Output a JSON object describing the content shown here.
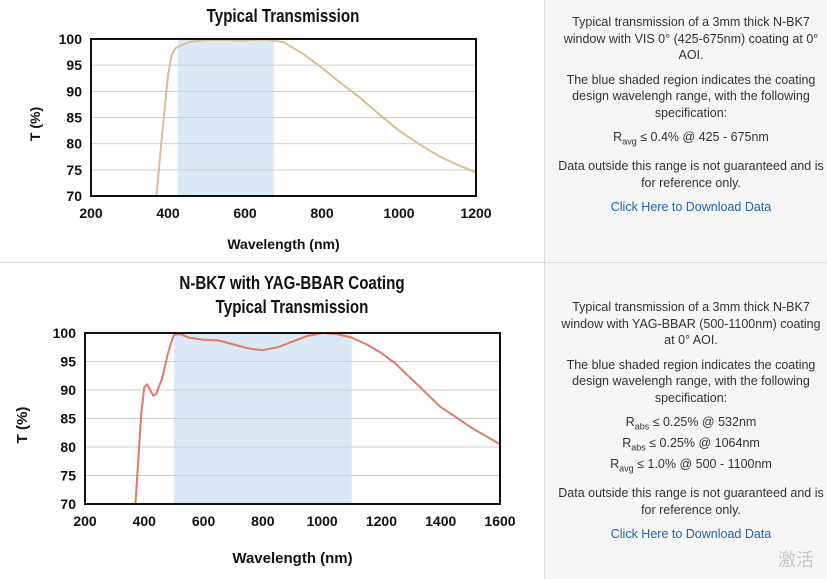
{
  "charts": [
    {
      "title_lines": [
        "Typical Transmission"
      ],
      "chart_data": {
        "type": "line",
        "title": "Typical Transmission",
        "xlabel": "Wavelength (nm)",
        "ylabel": "T (%)",
        "xlim": [
          200,
          1200
        ],
        "ylim": [
          70,
          100
        ],
        "xticks": [
          200,
          400,
          600,
          800,
          1000,
          1200
        ],
        "yticks": [
          70,
          75,
          80,
          85,
          90,
          95,
          100
        ],
        "shaded_range": [
          425,
          675
        ],
        "grid": true,
        "series": [
          {
            "color": "#d6c09a",
            "x": [
              370,
              385,
              400,
              410,
              420,
              440,
              460,
              500,
              550,
              600,
              650,
              700,
              750,
              800,
              850,
              900,
              950,
              1000,
              1050,
              1100,
              1150,
              1200
            ],
            "y": [
              70,
              82,
              93,
              97,
              98.3,
              99,
              99.5,
              99.8,
              99.8,
              99.7,
              99.9,
              99.4,
              97.2,
              94.5,
              91.5,
              88.7,
              85.5,
              82.5,
              80,
              77.8,
              76,
              74.5
            ]
          }
        ]
      }
    },
    {
      "title_lines": [
        "N-BK7 with YAG-BBAR Coating",
        "Typical Transmission"
      ],
      "chart_data": {
        "type": "line",
        "title": "N-BK7 with YAG-BBAR Coating Typical Transmission",
        "xlabel": "Wavelength (nm)",
        "ylabel": "T (%)",
        "xlim": [
          200,
          1600
        ],
        "ylim": [
          70,
          100
        ],
        "xticks": [
          200,
          400,
          600,
          800,
          1000,
          1200,
          1400,
          1600
        ],
        "yticks": [
          70,
          75,
          80,
          85,
          90,
          95,
          100
        ],
        "shaded_range": [
          500,
          1100
        ],
        "grid": true,
        "series": [
          {
            "color": "#e07a68",
            "x": [
              370,
              380,
              390,
              400,
              410,
              420,
              430,
              440,
              460,
              480,
              500,
              520,
              550,
              600,
              650,
              700,
              750,
              800,
              850,
              900,
              950,
              1000,
              1050,
              1100,
              1150,
              1200,
              1250,
              1300,
              1350,
              1400,
              1450,
              1500,
              1550,
              1600
            ],
            "y": [
              70,
              78,
              86,
              90.5,
              91,
              90,
              89,
              89.3,
              92,
              96.5,
              99.7,
              99.8,
              99.2,
              98.8,
              98.7,
              98,
              97.3,
              97,
              97.5,
              98.5,
              99.5,
              100,
              99.8,
              99.2,
              98,
              96.5,
              94.5,
              92,
              89.5,
              87,
              85.3,
              83.5,
              82,
              80.5
            ]
          }
        ]
      }
    }
  ],
  "info": [
    {
      "description": "Typical transmission of a 3mm thick N-BK7 window with VIS 0° (425-675nm) coating at 0° AOI.",
      "shaded_note": "The blue shaded region indicates the coating design wavelengh range, with the following specification:",
      "specs": [
        {
          "symbol": "R",
          "sub": "avg",
          "text": "≤ 0.4% @ 425 - 675nm"
        }
      ],
      "disclaimer": "Data outside this range is not guaranteed and is for reference only.",
      "link": "Click Here to Download Data"
    },
    {
      "description": "Typical transmission of a 3mm thick N-BK7 window with YAG-BBAR (500-1100nm) coating at 0° AOI.",
      "shaded_note": "The blue shaded region indicates the coating design wavelengh range, with the following specification:",
      "specs": [
        {
          "symbol": "R",
          "sub": "abs",
          "text": "≤ 0.25% @ 532nm"
        },
        {
          "symbol": "R",
          "sub": "abs",
          "text": "≤ 0.25% @ 1064nm"
        },
        {
          "symbol": "R",
          "sub": "avg",
          "text": "≤ 1.0% @ 500 - 1100nm"
        }
      ],
      "disclaimer": "Data outside this range is not guaranteed and is for reference only.",
      "link": "Click Here to Download Data"
    }
  ],
  "watermark": "激活"
}
